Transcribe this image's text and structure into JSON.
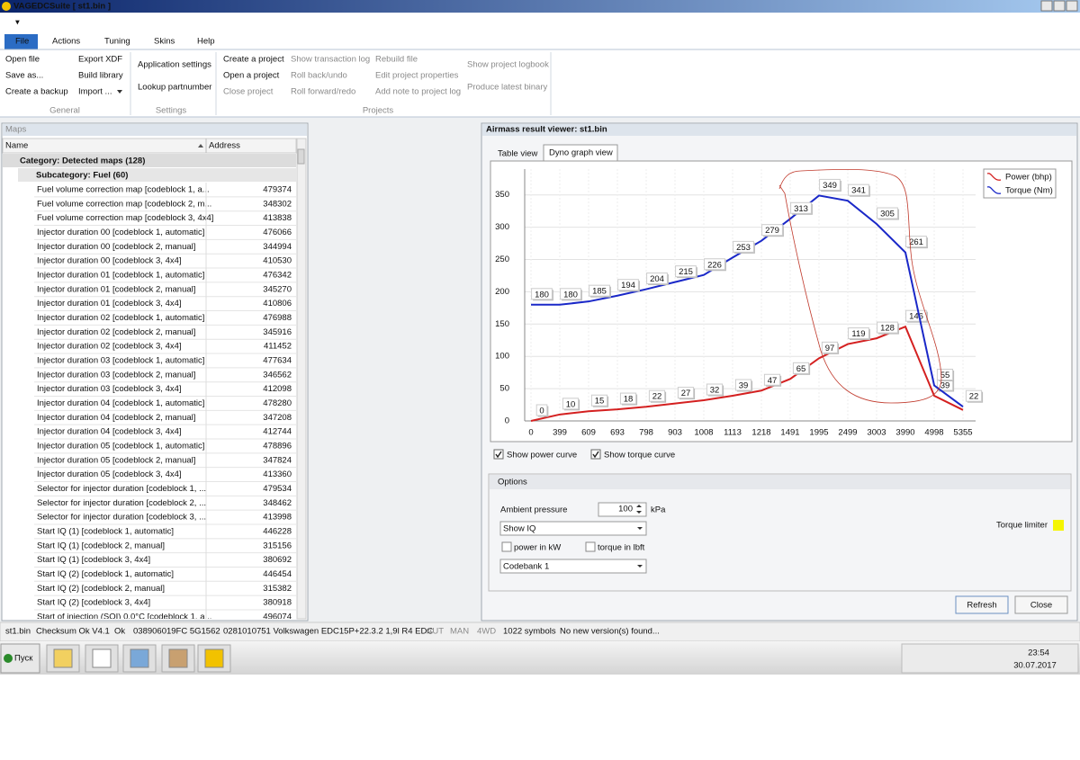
{
  "window_title": "VAGEDCSuite [ st1.bin ]",
  "menu_tabs": [
    "File",
    "Actions",
    "Tuning",
    "Skins",
    "Help"
  ],
  "ribbon": {
    "groups": [
      {
        "label": "General",
        "items": [
          "Open file",
          "Save as...",
          "Create a backup",
          "Export XDF",
          "Build library",
          "Import ..."
        ]
      },
      {
        "label": "Settings",
        "items": [
          "Application settings",
          "Lookup partnumber"
        ]
      },
      {
        "label": "Projects",
        "items": [
          "Create a project",
          "Open a project",
          "Close project",
          "Show transaction log",
          "Roll back/undo",
          "Roll forward/redo",
          "Rebuild file",
          "Edit project properties",
          "Add note to project log",
          "Show project logbook",
          "Produce latest binary"
        ]
      }
    ]
  },
  "maps": {
    "title": "Maps",
    "columns": [
      "Name",
      "Address"
    ],
    "category": "Category: Detected maps (128)",
    "subcategory": "Subcategory: Fuel (60)",
    "rows": [
      [
        "Fuel volume correction map [codeblock 1, a...",
        479374
      ],
      [
        "Fuel volume correction map [codeblock 2, m...",
        348302
      ],
      [
        "Fuel volume correction map [codeblock 3, 4x4]",
        413838
      ],
      [
        "Injector duration 00 [codeblock 1, automatic]",
        476066
      ],
      [
        "Injector duration 00 [codeblock 2, manual]",
        344994
      ],
      [
        "Injector duration 00 [codeblock 3, 4x4]",
        410530
      ],
      [
        "Injector duration 01 [codeblock 1, automatic]",
        476342
      ],
      [
        "Injector duration 01 [codeblock 2, manual]",
        345270
      ],
      [
        "Injector duration 01 [codeblock 3, 4x4]",
        410806
      ],
      [
        "Injector duration 02 [codeblock 1, automatic]",
        476988
      ],
      [
        "Injector duration 02 [codeblock 2, manual]",
        345916
      ],
      [
        "Injector duration 02 [codeblock 3, 4x4]",
        411452
      ],
      [
        "Injector duration 03 [codeblock 1, automatic]",
        477634
      ],
      [
        "Injector duration 03 [codeblock 2, manual]",
        346562
      ],
      [
        "Injector duration 03 [codeblock 3, 4x4]",
        412098
      ],
      [
        "Injector duration 04 [codeblock 1, automatic]",
        478280
      ],
      [
        "Injector duration 04 [codeblock 2, manual]",
        347208
      ],
      [
        "Injector duration 04 [codeblock 3, 4x4]",
        412744
      ],
      [
        "Injector duration 05 [codeblock 1, automatic]",
        478896
      ],
      [
        "Injector duration 05 [codeblock 2, manual]",
        347824
      ],
      [
        "Injector duration 05 [codeblock 3, 4x4]",
        413360
      ],
      [
        "Selector for injector duration [codeblock 1, ...",
        479534
      ],
      [
        "Selector for injector duration [codeblock 2, ...",
        348462
      ],
      [
        "Selector for injector duration [codeblock 3, ...",
        413998
      ],
      [
        "Start IQ (1) [codeblock 1, automatic]",
        446228
      ],
      [
        "Start IQ (1) [codeblock 2, manual]",
        315156
      ],
      [
        "Start IQ (1) [codeblock 3, 4x4]",
        380692
      ],
      [
        "Start IQ (2) [codeblock 1, automatic]",
        446454
      ],
      [
        "Start IQ (2) [codeblock 2, manual]",
        315382
      ],
      [
        "Start IQ (2) [codeblock 3, 4x4]",
        380918
      ],
      [
        "Start of injection (SOI) 0.0°C [codeblock 1, a...",
        496074
      ]
    ]
  },
  "viewer": {
    "title": "Airmass result viewer: st1.bin",
    "tabs": [
      "Table view",
      "Dyno graph view"
    ],
    "checkboxes": [
      "Show power curve",
      "Show torque curve"
    ],
    "options": {
      "title": "Options",
      "ambient_label": "Ambient pressure",
      "ambient_value": 100,
      "ambient_unit": "kPa",
      "dropdown1": "Show IQ",
      "check_kw": "power in kW",
      "check_lbft": "torque in lbft",
      "dropdown2": "Codebank 1",
      "torque_limiter": "Torque limiter"
    },
    "buttons": [
      "Refresh",
      "Close"
    ]
  },
  "chart_data": {
    "type": "line",
    "categories": [
      "0",
      "399",
      "609",
      "693",
      "798",
      "903",
      "1008",
      "1113",
      "1218",
      "1491",
      "1995",
      "2499",
      "3003",
      "3990",
      "4998",
      "5355"
    ],
    "series": [
      {
        "name": "Power (bhp)",
        "color": "#d42020",
        "values": [
          0,
          10,
          15,
          18,
          22,
          27,
          32,
          39,
          47,
          65,
          97,
          119,
          128,
          146,
          39,
          17
        ],
        "value_labels": [
          "0",
          "10",
          "15",
          "18",
          "22",
          "27",
          "32",
          "39",
          "47",
          "65",
          "97",
          "119",
          "128",
          "146",
          "39",
          null
        ]
      },
      {
        "name": "Torque (Nm)",
        "color": "#1a28c8",
        "values": [
          180,
          180,
          185,
          194,
          204,
          215,
          226,
          253,
          279,
          313,
          349,
          341,
          305,
          261,
          55,
          22
        ]
      }
    ],
    "ylim": [
      0,
      390
    ],
    "yticks": [
      0,
      50,
      100,
      150,
      200,
      250,
      300,
      350
    ],
    "grid": true,
    "legend": "top-right"
  },
  "status_bar": [
    "st1.bin",
    "Checksum Ok V4.1",
    "Ok",
    "038906019FC 5G1562",
    "0281010751 Volkswagen EDC15P+22.3.2 1,9l R4 EDC",
    "AUT",
    "MAN",
    "4WD",
    "1022 symbols",
    "No new version(s) found..."
  ],
  "taskbar": {
    "start": "Пуск",
    "time": "23:54",
    "date": "30.07.2017"
  }
}
